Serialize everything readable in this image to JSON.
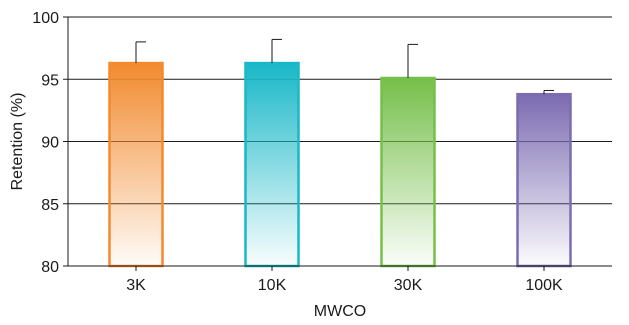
{
  "chart_data": {
    "type": "bar",
    "categories": [
      "3K",
      "10K",
      "30K",
      "100K"
    ],
    "values": [
      96.3,
      96.3,
      95.1,
      93.8
    ],
    "errors": [
      1.7,
      1.9,
      2.7,
      0.3
    ],
    "xlabel": "MWCO",
    "ylabel": "Retention (%)",
    "ylim": [
      80,
      100
    ],
    "yticks": [
      80,
      85,
      90,
      95,
      100
    ],
    "grid": "horizontal",
    "legend": "none",
    "colors": [
      "#f28a2e",
      "#19b8c8",
      "#76bf4a",
      "#7b6bb1"
    ]
  }
}
